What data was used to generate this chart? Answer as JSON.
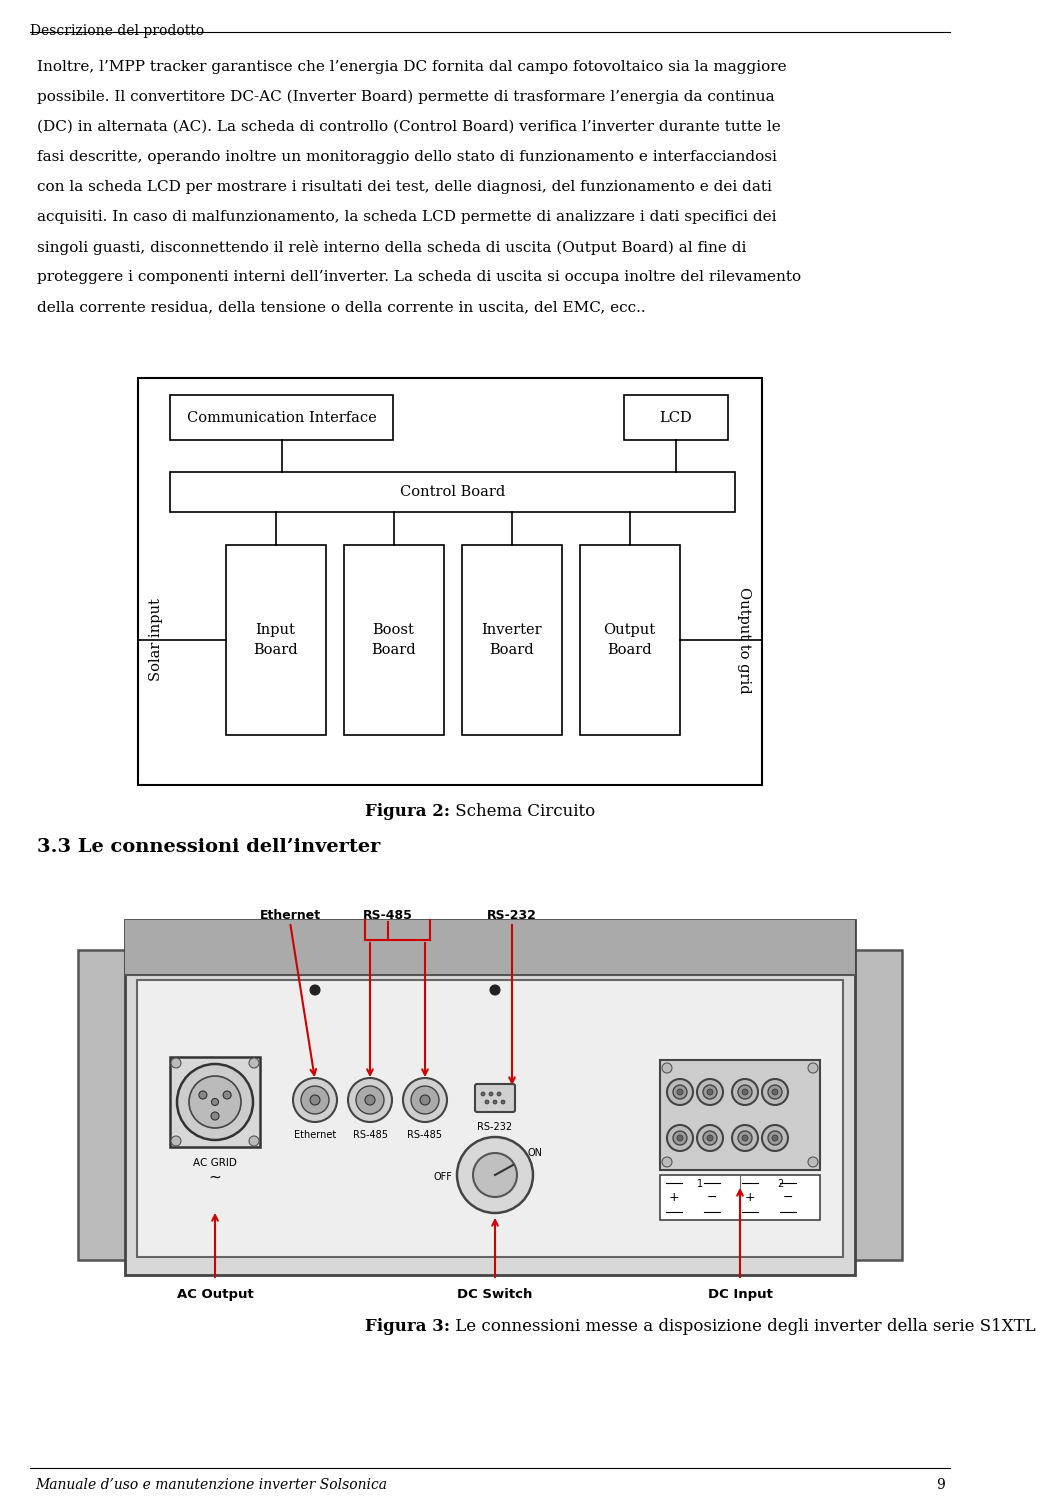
{
  "page_title": "Descrizione del prodotto",
  "page_number": "9",
  "footer": "Manuale d’uso e manutenzione inverter Solsonica",
  "fig2_caption_bold": "Figura 2:",
  "fig2_caption_rest": " Schema Circuito",
  "fig3_section_title": "3.3 Le connessioni dell’inverter",
  "fig3_caption_bold": "Figura 3:",
  "fig3_caption_rest": " Le connessioni messe a disposizione degli inverter della serie S1XTL",
  "para_lines": [
    "Inoltre, l’MPP tracker garantisce che l’energia DC fornita dal campo fotovoltaico sia la maggiore",
    "possibile. Il convertitore DC-AC (Inverter Board) permette di trasformare l’energia da continua",
    "(DC) in alternata (AC). La scheda di controllo (Control Board) verifica l’inverter durante tutte le",
    "fasi descritte, operando inoltre un monitoraggio dello stato di funzionamento e interfacciandosi",
    "con la scheda LCD per mostrare i risultati dei test, delle diagnosi, del funzionamento e dei dati",
    "acquisiti. In caso di malfunzionamento, la scheda LCD permette di analizzare i dati specifici dei",
    "singoli guasti, disconnettendo il relè interno della scheda di uscita (Output Board) al fine di",
    "proteggere i componenti interni dell’inverter. La scheda di uscita si occupa inoltre del rilevamento",
    "della corrente residua, della tensione o della corrente in uscita, del EMC, ecc.."
  ],
  "bg_color": "#ffffff"
}
